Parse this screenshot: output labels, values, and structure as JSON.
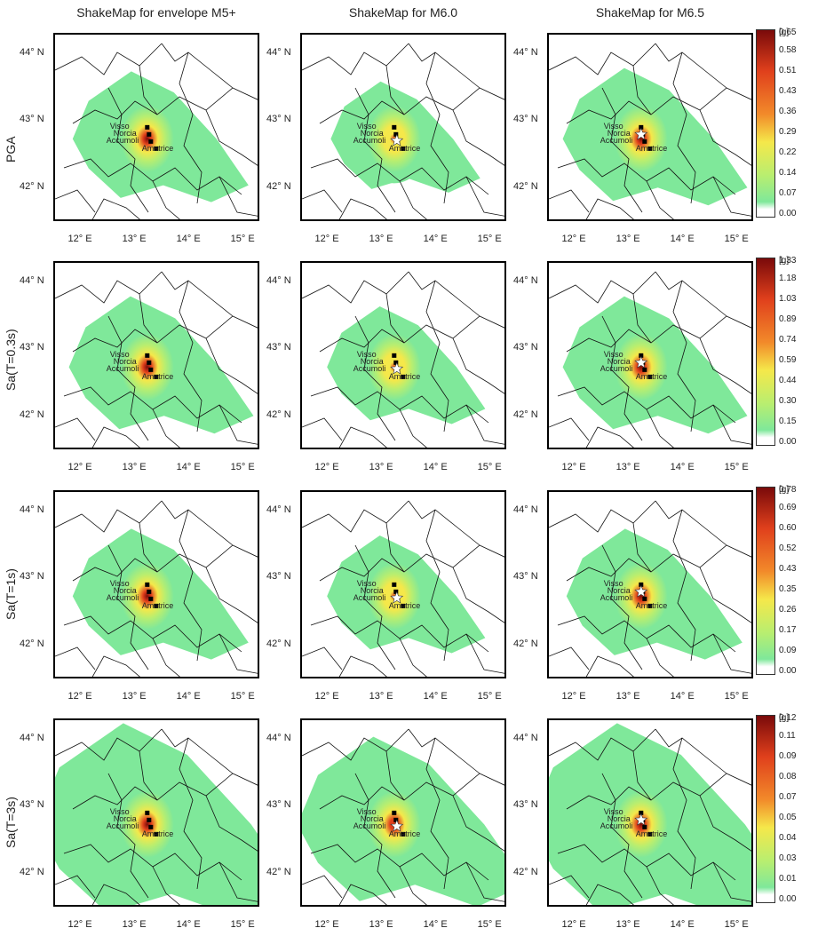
{
  "column_titles": [
    "ShakeMap for envelope M5+",
    "ShakeMap for M6.0",
    "ShakeMap for M6.5"
  ],
  "row_labels": [
    "PGA",
    "Sa(T=0.3s)",
    "Sa(T=1s)",
    "Sa(T=3s)"
  ],
  "y_ticks": [
    "44° N",
    "43° N",
    "42° N"
  ],
  "x_ticks": [
    "12° E",
    "13° E",
    "14° E",
    "15° E"
  ],
  "cities": [
    "Visso",
    "Norcia",
    "Accumoli",
    "Amatrice"
  ],
  "colorbars": [
    {
      "unit": "[g]",
      "ticks": [
        "0.65",
        "0.58",
        "0.51",
        "0.43",
        "0.36",
        "0.29",
        "0.22",
        "0.14",
        "0.07",
        "0.00"
      ]
    },
    {
      "unit": "[g]",
      "ticks": [
        "1.33",
        "1.18",
        "1.03",
        "0.89",
        "0.74",
        "0.59",
        "0.44",
        "0.30",
        "0.15",
        "0.00"
      ]
    },
    {
      "unit": "[g]",
      "ticks": [
        "0.78",
        "0.69",
        "0.60",
        "0.52",
        "0.43",
        "0.35",
        "0.26",
        "0.17",
        "0.09",
        "0.00"
      ]
    },
    {
      "unit": "[g]",
      "ticks": [
        "0.12",
        "0.11",
        "0.09",
        "0.08",
        "0.07",
        "0.05",
        "0.04",
        "0.03",
        "0.01",
        "0.00"
      ]
    }
  ],
  "colors": {
    "low": "#7fe89a",
    "mid": "#f5e84a",
    "high": "#e0401c",
    "peak": "#7a0a0a",
    "empty": "#ffffff"
  },
  "chart_data": {
    "type": "heatmap",
    "title": "",
    "xlabel": "",
    "ylabel": "",
    "xlim": [
      11.5,
      15.3
    ],
    "ylim": [
      41.5,
      44.3
    ],
    "columns": [
      "ShakeMap for envelope M5+",
      "ShakeMap for M6.0",
      "ShakeMap for M6.5"
    ],
    "rows": [
      "PGA",
      "Sa(T=0.3s)",
      "Sa(T=1s)",
      "Sa(T=3s)"
    ],
    "peak_location": {
      "lon": 13.2,
      "lat": 42.75
    },
    "panels": [
      [
        {
          "peak": 0.65,
          "extent": 1.0
        },
        {
          "peak": 0.35,
          "extent": 0.85
        },
        {
          "peak": 0.65,
          "extent": 1.05
        }
      ],
      [
        {
          "peak": 1.33,
          "extent": 1.05
        },
        {
          "peak": 0.6,
          "extent": 0.9
        },
        {
          "peak": 1.33,
          "extent": 1.05
        }
      ],
      [
        {
          "peak": 0.78,
          "extent": 1.0
        },
        {
          "peak": 0.45,
          "extent": 0.9
        },
        {
          "peak": 0.78,
          "extent": 1.0
        }
      ],
      [
        {
          "peak": 0.12,
          "extent": 1.5
        },
        {
          "peak": 0.09,
          "extent": 1.3
        },
        {
          "peak": 0.12,
          "extent": 1.5
        }
      ]
    ]
  }
}
